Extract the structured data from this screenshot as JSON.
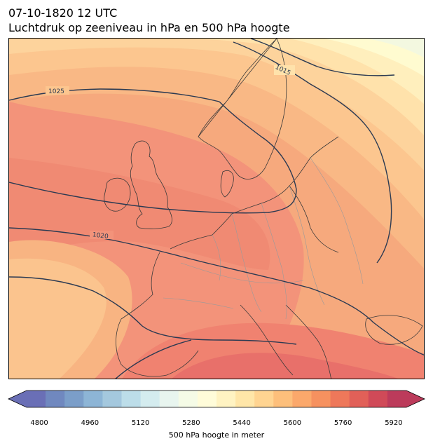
{
  "header": {
    "timestamp": "07-10-1820 12 UTC",
    "subtitle": "Luchtdruk op zeeniveau in hPa en 500 hPa hoogte"
  },
  "map": {
    "isobar_labels": [
      "1025",
      "1015",
      "1020"
    ],
    "colors": {
      "coast": "#3a3a3a",
      "borders": "#9a9a9a",
      "isobars": "#2b3a52"
    }
  },
  "colorbar": {
    "label": "500 hPa hoogte in meter",
    "ticks": [
      "4800",
      "4960",
      "5120",
      "5280",
      "5440",
      "5600",
      "5760",
      "5920"
    ],
    "min": 4760,
    "max": 5960,
    "step": 40,
    "colors": [
      "#6a6fb6",
      "#7088bf",
      "#7b9ec9",
      "#8db5d6",
      "#a4c8de",
      "#bcdde9",
      "#d4ecef",
      "#e8f5ef",
      "#f5fbe6",
      "#fffcd9",
      "#fff3c2",
      "#ffe6a8",
      "#ffd491",
      "#fdbf7b",
      "#fba86b",
      "#f6915f",
      "#ee785a",
      "#e16058",
      "#d04a58",
      "#bc3b5b"
    ]
  }
}
